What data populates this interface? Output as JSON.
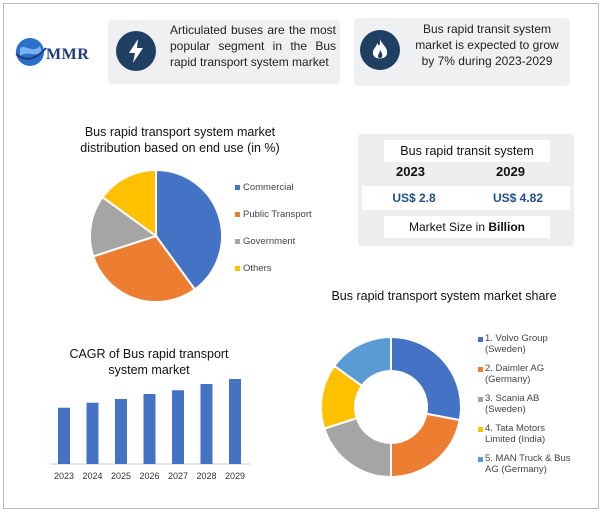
{
  "brand": {
    "name": "MMR"
  },
  "cards": [
    {
      "icon": "lightning-icon",
      "text": "Articulated buses are the most popular segment in the Bus rapid transport system market"
    },
    {
      "icon": "flame-icon",
      "text": "Bus rapid transit system market is expected to grow by 7% during 2023-2029"
    }
  ],
  "market_size": {
    "title": "Bus rapid transit system",
    "year_start": "2023",
    "year_end": "2029",
    "value_start": "US$ 2.8",
    "value_end": "US$ 4.82",
    "footer_prefix": "Market Size in ",
    "footer_unit": "Billion"
  },
  "chart_data": [
    {
      "type": "pie",
      "title": "Bus rapid transport system  market distribution based on end use (in %)",
      "categories": [
        "Commercial",
        "Public Transport",
        "Government",
        "Others"
      ],
      "values": [
        40,
        30,
        15,
        15
      ],
      "colors": [
        "#4472c4",
        "#ed7d31",
        "#a5a5a5",
        "#ffc000"
      ],
      "legend": "right"
    },
    {
      "type": "bar",
      "title": "CAGR of Bus rapid transport system market",
      "categories": [
        "2023",
        "2024",
        "2025",
        "2026",
        "2027",
        "2028",
        "2029"
      ],
      "values": [
        4.5,
        4.9,
        5.2,
        5.6,
        5.9,
        6.4,
        6.8
      ],
      "color": "#4472c4",
      "grid": false
    },
    {
      "type": "pie",
      "subtype": "donut",
      "title": "Bus rapid transport system  market share",
      "categories": [
        "1. Volvo Group (Sweden)",
        "2. Daimler AG (Germany)",
        "3. Scania AB (Sweden)",
        "4. Tata Motors Limited (India)",
        "5. MAN Truck & Bus AG (Germany)"
      ],
      "legend_lines": [
        [
          "1. Volvo Group",
          "(Sweden)"
        ],
        [
          "2. Daimler AG",
          "(Germany)"
        ],
        [
          "3. Scania AB",
          "(Sweden)"
        ],
        [
          "4. Tata Motors",
          "Limited (India)"
        ],
        [
          "5. MAN Truck & Bus",
          "AG (Germany)"
        ]
      ],
      "values": [
        28,
        22,
        20,
        15,
        15
      ],
      "colors": [
        "#4472c4",
        "#ed7d31",
        "#a5a5a5",
        "#ffc000",
        "#5b9bd5"
      ],
      "legend": "right"
    }
  ]
}
